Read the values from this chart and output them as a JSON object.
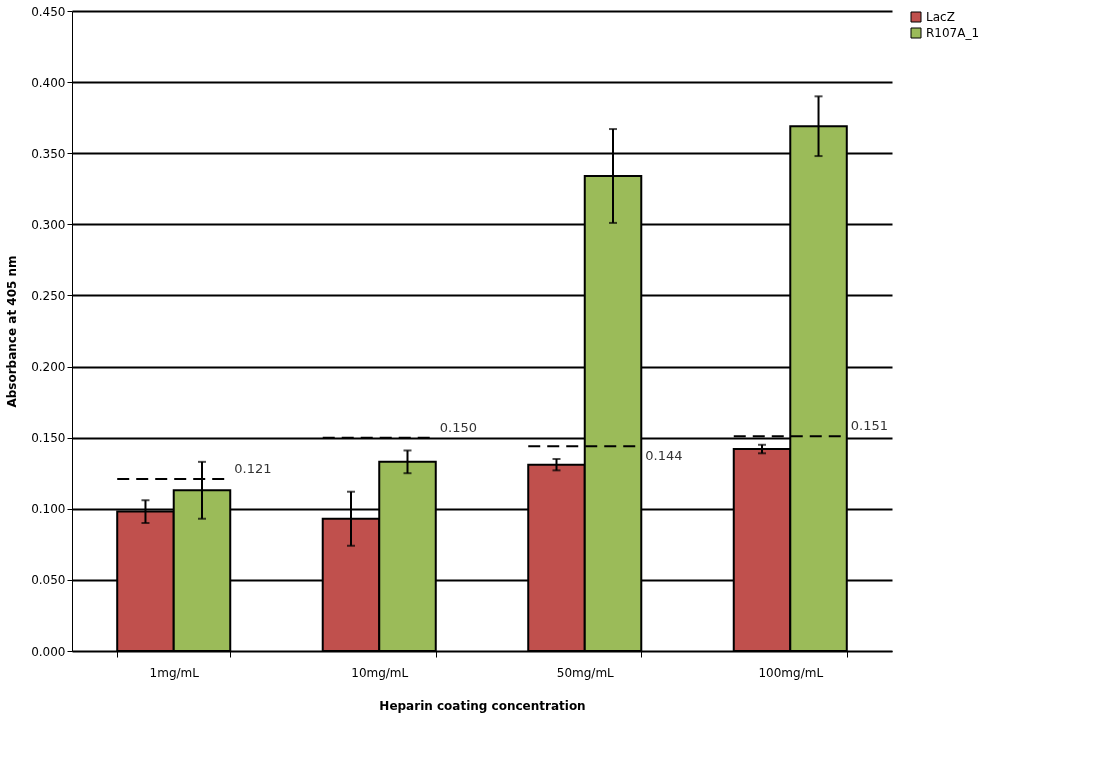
{
  "chart_data": {
    "type": "bar",
    "xlabel": "Heparin coating concentration",
    "ylabel": "Absorbance at 405 nm",
    "categories": [
      "1mg/mL",
      "10mg/mL",
      "50mg/mL",
      "100mg/mL"
    ],
    "series": [
      {
        "name": "LacZ",
        "color": "#c0504d",
        "values": [
          0.098,
          0.093,
          0.131,
          0.142
        ],
        "errors": [
          0.008,
          0.019,
          0.004,
          0.003
        ]
      },
      {
        "name": "R107A_1",
        "color": "#9bbb59",
        "values": [
          0.113,
          0.133,
          0.334,
          0.369
        ],
        "errors": [
          0.02,
          0.008,
          0.033,
          0.021
        ]
      }
    ],
    "ref_lines": [
      {
        "axis": "y",
        "value": 0.121,
        "label": "0.121",
        "line_style": "dashed",
        "color": "#000000"
      },
      {
        "axis": "y",
        "value": 0.15,
        "label": "0.150",
        "line_style": "dashed",
        "color": "#000000"
      },
      {
        "axis": "y",
        "value": 0.144,
        "label": "0.144",
        "line_style": "dashed",
        "color": "#000000"
      },
      {
        "axis": "y",
        "value": 0.151,
        "label": "0.151",
        "line_style": "dashed",
        "color": "#000000"
      }
    ],
    "ylim": [
      0,
      0.45
    ],
    "yticks": [
      {
        "value": 0,
        "label": "0.000"
      },
      {
        "value": 0.05,
        "label": "0.050"
      },
      {
        "value": 0.1,
        "label": "0.100"
      },
      {
        "value": 0.15,
        "label": "0.150"
      },
      {
        "value": 0.2,
        "label": "0.200"
      },
      {
        "value": 0.25,
        "label": "0.250"
      },
      {
        "value": 0.3,
        "label": "0.300"
      },
      {
        "value": 0.35,
        "label": "0.350"
      },
      {
        "value": 0.4,
        "label": "0.400"
      },
      {
        "value": 0.45,
        "label": "0.450"
      }
    ],
    "grid": "y",
    "legend": "right"
  }
}
